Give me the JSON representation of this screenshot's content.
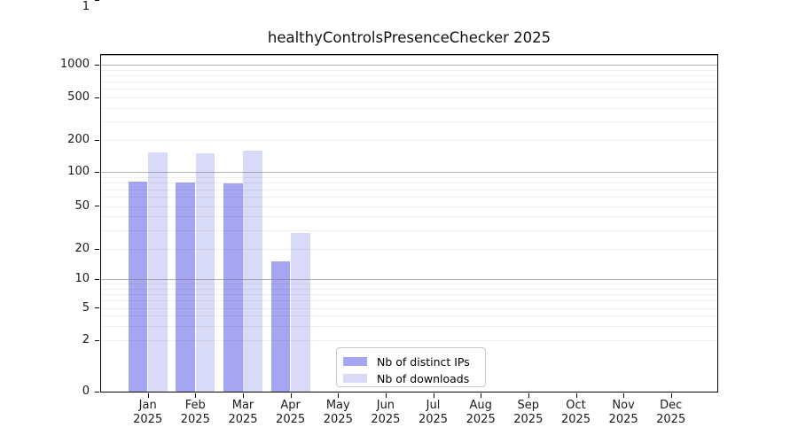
{
  "title": "healthyControlsPresenceChecker 2025",
  "colors": {
    "distinct_ips_bar": "#a5a5f1",
    "downloads_bar": "#d9d9f8",
    "major_grid": "#b0b0b0",
    "minor_grid": "#ededed",
    "axis": "#000000",
    "background": "#ffffff"
  },
  "chart_data": {
    "type": "bar",
    "title": "healthyControlsPresenceChecker 2025",
    "subtitle": "",
    "xlabel": "",
    "ylabel": "",
    "y_axis": {
      "ticks": [
        0,
        1,
        2,
        5,
        10,
        20,
        50,
        100,
        200,
        500,
        1000
      ],
      "scale": "log-like (log10(value+1))",
      "range": [
        0,
        1280
      ],
      "grid": true
    },
    "categories": [
      {
        "month": "Jan",
        "year": "2025"
      },
      {
        "month": "Feb",
        "year": "2025"
      },
      {
        "month": "Mar",
        "year": "2025"
      },
      {
        "month": "Apr",
        "year": "2025"
      },
      {
        "month": "May",
        "year": "2025"
      },
      {
        "month": "Jun",
        "year": "2025"
      },
      {
        "month": "Jul",
        "year": "2025"
      },
      {
        "month": "Aug",
        "year": "2025"
      },
      {
        "month": "Sep",
        "year": "2025"
      },
      {
        "month": "Oct",
        "year": "2025"
      },
      {
        "month": "Nov",
        "year": "2025"
      },
      {
        "month": "Dec",
        "year": "2025"
      }
    ],
    "series": [
      {
        "name": "Nb of distinct IPs",
        "color": "#a5a5f1",
        "values": [
          82,
          81,
          79,
          15,
          0,
          0,
          0,
          0,
          0,
          0,
          0,
          0
        ]
      },
      {
        "name": "Nb of downloads",
        "color": "#d9d9f8",
        "values": [
          152,
          149,
          160,
          28,
          0,
          0,
          0,
          0,
          0,
          0,
          0,
          0
        ]
      }
    ],
    "legend": {
      "position": "lower center"
    }
  }
}
